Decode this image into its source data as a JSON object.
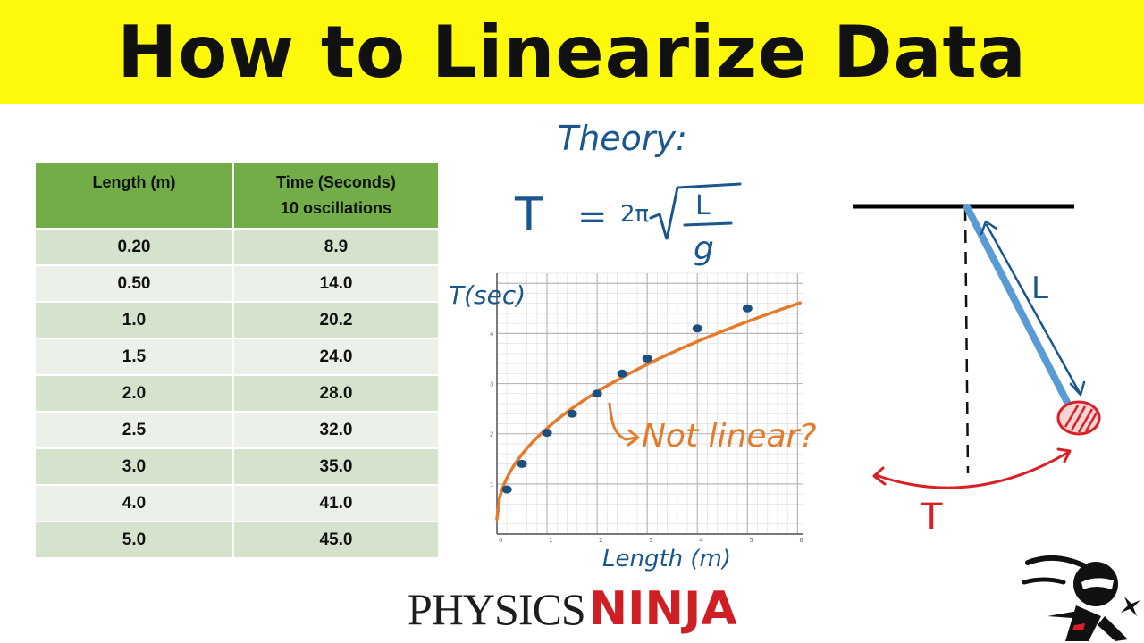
{
  "title": "How to Linearize Data",
  "table": {
    "headers": [
      "Length (m)",
      "Time (Seconds)",
      "10 oscillations"
    ],
    "rows": [
      [
        "0.20",
        "8.9"
      ],
      [
        "0.50",
        "14.0"
      ],
      [
        "1.0",
        "20.2"
      ],
      [
        "1.5",
        "24.0"
      ],
      [
        "2.0",
        "28.0"
      ],
      [
        "2.5",
        "32.0"
      ],
      [
        "3.0",
        "35.0"
      ],
      [
        "4.0",
        "41.0"
      ],
      [
        "5.0",
        "45.0"
      ]
    ]
  },
  "annotations": {
    "theory": "Theory:",
    "formula_T": "T",
    "formula_eq": "=",
    "formula_2pi": "2π",
    "formula_L": "L",
    "formula_g": "g",
    "y_label": "T(sec)",
    "x_label": "Length (m)",
    "not_linear": "Not linear?",
    "pendulum_L": "L",
    "pendulum_T": "T"
  },
  "brand": {
    "part1": "PHYSICS",
    "part2": "NINJA"
  },
  "colors": {
    "banner": "#fef90a",
    "table_header": "#72ad47",
    "row_dark": "#d5e3cd",
    "row_light": "#ebf1e8",
    "ink_blue": "#19578c",
    "curve_orange": "#e57b2a",
    "rod_blue": "#5b9bd5",
    "bob_red": "#d92027"
  },
  "chart_data": {
    "type": "scatter",
    "x_ticks": [
      "0",
      "1",
      "2",
      "3",
      "4",
      "5",
      "6"
    ],
    "y_ticks": [
      "1",
      "2",
      "3",
      "4"
    ],
    "xlim": [
      0,
      6.1
    ],
    "ylim": [
      0,
      5.2
    ],
    "grid": true,
    "points": [
      {
        "x": 0.2,
        "y": 0.89
      },
      {
        "x": 0.5,
        "y": 1.4
      },
      {
        "x": 1.0,
        "y": 2.02
      },
      {
        "x": 1.5,
        "y": 2.4
      },
      {
        "x": 2.0,
        "y": 2.8
      },
      {
        "x": 2.5,
        "y": 3.2
      },
      {
        "x": 3.0,
        "y": 3.5
      },
      {
        "x": 4.0,
        "y": 4.1
      },
      {
        "x": 5.0,
        "y": 4.5
      }
    ],
    "fit_curve": "y = 2.0 * sqrt(x)"
  }
}
